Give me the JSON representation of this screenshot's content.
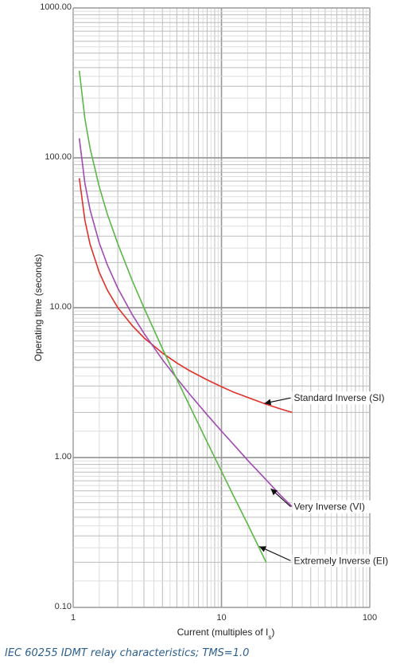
{
  "caption": "IEC 60255 IDMT relay characteristics; TMS=1.0",
  "chart_data": {
    "type": "line",
    "title": "",
    "xlabel": "Current (multiples of Is)",
    "xlabel_main": "Current (multiples of I",
    "xlabel_sub": "s",
    "xlabel_end": ")",
    "ylabel": "Operating time (seconds)",
    "xscale": "log",
    "yscale": "log",
    "xlim": [
      1,
      100
    ],
    "ylim": [
      0.1,
      1000
    ],
    "grid": true,
    "xticks": [
      {
        "value": 1,
        "label": "1"
      },
      {
        "value": 10,
        "label": "10"
      },
      {
        "value": 100,
        "label": "100"
      }
    ],
    "yticks": [
      {
        "value": 0.1,
        "label": "0.10"
      },
      {
        "value": 1,
        "label": "1.00"
      },
      {
        "value": 10,
        "label": "10.00"
      },
      {
        "value": 100,
        "label": "100.00"
      },
      {
        "value": 1000,
        "label": "1000.00"
      }
    ],
    "series": [
      {
        "name": "Standard Inverse (SI)",
        "color": "#e0302a",
        "x": [
          1.1,
          1.2,
          1.3,
          1.5,
          1.7,
          2,
          2.5,
          3,
          4,
          5,
          6,
          8,
          10,
          12,
          15,
          20,
          25,
          30
        ],
        "y": [
          73.2,
          38.3,
          26.5,
          17.2,
          13.1,
          10.0,
          7.6,
          6.3,
          4.98,
          4.28,
          3.83,
          3.3,
          2.97,
          2.74,
          2.52,
          2.27,
          2.11,
          2.0
        ]
      },
      {
        "name": "Very Inverse (VI)",
        "color": "#a24ab4",
        "x": [
          1.1,
          1.2,
          1.3,
          1.5,
          1.7,
          2,
          2.5,
          3,
          4,
          5,
          6,
          8,
          10,
          12,
          15,
          20,
          25,
          30
        ],
        "y": [
          135,
          67.5,
          45,
          27,
          19.3,
          13.5,
          9.0,
          6.75,
          4.5,
          3.38,
          2.7,
          1.93,
          1.5,
          1.23,
          0.96,
          0.71,
          0.56,
          0.47
        ]
      },
      {
        "name": "Extremely Inverse (EI)",
        "color": "#5ab846",
        "x": [
          1.1,
          1.2,
          1.3,
          1.5,
          1.7,
          2,
          2.5,
          3,
          4,
          5,
          6,
          8,
          10,
          12,
          15,
          20
        ],
        "y": [
          381,
          182,
          116,
          64,
          42.1,
          26.7,
          15.2,
          10.0,
          5.33,
          3.33,
          2.29,
          1.27,
          0.81,
          0.56,
          0.36,
          0.2
        ]
      }
    ],
    "annotations": [
      {
        "text": "Standard Inverse (SI)",
        "series": 0,
        "x": 30,
        "y": 2.5,
        "point_x": 19.5,
        "point_y": 2.3
      },
      {
        "text": "Very Inverse (VI)",
        "series": 1,
        "x": 30,
        "y": 0.47,
        "point_x": 21.5,
        "point_y": 0.62
      },
      {
        "text": "Extremely Inverse (EI)",
        "series": 2,
        "x": 30,
        "y": 0.205,
        "point_x": 18,
        "point_y": 0.255
      }
    ]
  }
}
